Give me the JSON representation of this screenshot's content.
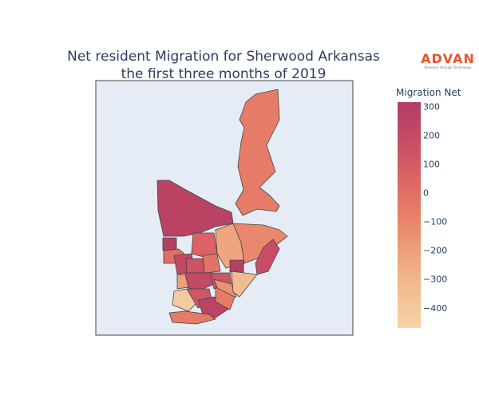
{
  "title": {
    "line1": "Net resident Migration for Sherwood Arkansas",
    "line2": "the first three months of 2019"
  },
  "logo": {
    "name": "ADVAN",
    "tagline": "Research through Technology",
    "color": "#e8552b"
  },
  "chart_data": {
    "type": "choropleth",
    "region": "Sherwood, Arkansas",
    "map_background": "#e5ecf6",
    "region_border_color": "#444444",
    "colorbar": {
      "title": "Migration Net",
      "ticks": [
        300,
        200,
        100,
        0,
        -100,
        -200,
        -300,
        -400
      ],
      "tick_labels": [
        "300",
        "200",
        "100",
        "0",
        "−100",
        "−200",
        "−300",
        "−400"
      ],
      "range": [
        -470,
        315
      ],
      "colorscale": [
        "#b03d64",
        "#c74b65",
        "#dc6266",
        "#e78068",
        "#eea07b",
        "#f2bd93",
        "#f6d3a8"
      ]
    },
    "regions": [
      {
        "id": "north-tract",
        "value": -60
      },
      {
        "id": "northwest-tract",
        "value": 260
      },
      {
        "id": "west-notch-tract",
        "value": 290
      },
      {
        "id": "central-north-tract",
        "value": 60
      },
      {
        "id": "central-light-tract",
        "value": -230
      },
      {
        "id": "east-tract",
        "value": -110
      },
      {
        "id": "far-east-tract",
        "value": 180
      },
      {
        "id": "small-dark-tract",
        "value": 290
      },
      {
        "id": "west-small-tract",
        "value": 0
      },
      {
        "id": "central-a-tract",
        "value": 210
      },
      {
        "id": "central-b-tract",
        "value": 140
      },
      {
        "id": "central-c-tract",
        "value": -20
      },
      {
        "id": "central-d-tract",
        "value": 200
      },
      {
        "id": "mid-west-tract",
        "value": -210
      },
      {
        "id": "mid-center-tract",
        "value": 140
      },
      {
        "id": "south-center-tract",
        "value": -150
      },
      {
        "id": "southeast-tract",
        "value": -330
      },
      {
        "id": "southwest-tract",
        "value": -420
      },
      {
        "id": "south-a-tract",
        "value": 120
      },
      {
        "id": "south-b-tract",
        "value": 250
      },
      {
        "id": "south-c-tract",
        "value": -60
      },
      {
        "id": "bottom-tract",
        "value": -50
      }
    ]
  }
}
